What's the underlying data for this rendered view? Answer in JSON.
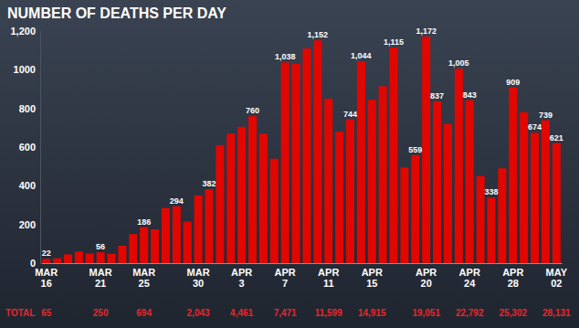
{
  "chart_data": {
    "type": "bar",
    "title": "NUMBER OF DEATHS PER DAY",
    "categories": [
      "MAR 16",
      null,
      null,
      null,
      null,
      "MAR 21",
      null,
      null,
      null,
      "MAR 25",
      null,
      null,
      null,
      null,
      "MAR 30",
      null,
      null,
      null,
      "APR 3",
      null,
      null,
      null,
      "APR 7",
      null,
      null,
      null,
      "APR 11",
      null,
      null,
      null,
      "APR 15",
      null,
      null,
      null,
      null,
      "APR 20",
      null,
      null,
      null,
      "APR 24",
      null,
      null,
      null,
      "APR 28",
      null,
      null,
      null,
      "MAY 02"
    ],
    "values": [
      22,
      25,
      45,
      60,
      50,
      56,
      48,
      90,
      150,
      186,
      175,
      285,
      294,
      215,
      350,
      382,
      610,
      670,
      705,
      760,
      670,
      540,
      1038,
      1030,
      1110,
      1152,
      850,
      680,
      744,
      1044,
      845,
      915,
      1115,
      495,
      559,
      1172,
      837,
      720,
      1005,
      843,
      450,
      338,
      490,
      909,
      780,
      674,
      739,
      621
    ],
    "value_labels": [
      "22",
      null,
      null,
      null,
      null,
      "56",
      null,
      null,
      null,
      "186",
      null,
      null,
      "294",
      null,
      null,
      "382",
      null,
      null,
      null,
      "760",
      null,
      null,
      "1,038",
      null,
      null,
      "1,152",
      null,
      null,
      "744",
      "1,044",
      null,
      null,
      "1,115",
      null,
      "559",
      "1,172",
      "837",
      null,
      "1,005",
      "843",
      null,
      "338",
      null,
      "909",
      null,
      "674",
      "739",
      "621"
    ],
    "color": "#e10600",
    "ylim": [
      0,
      1200
    ],
    "yticks": [
      0,
      200,
      400,
      600,
      800,
      1000,
      {
        "value": 1200,
        "label": "1,200"
      }
    ],
    "grid": false,
    "data_labels": true,
    "totals": {
      "label": "TOTAL",
      "values": [
        "65",
        "250",
        "694",
        "2,043",
        "4,461",
        "7,471",
        "11,599",
        "14,915",
        "19,051",
        "22,792",
        "25,302",
        "28,131"
      ]
    }
  }
}
